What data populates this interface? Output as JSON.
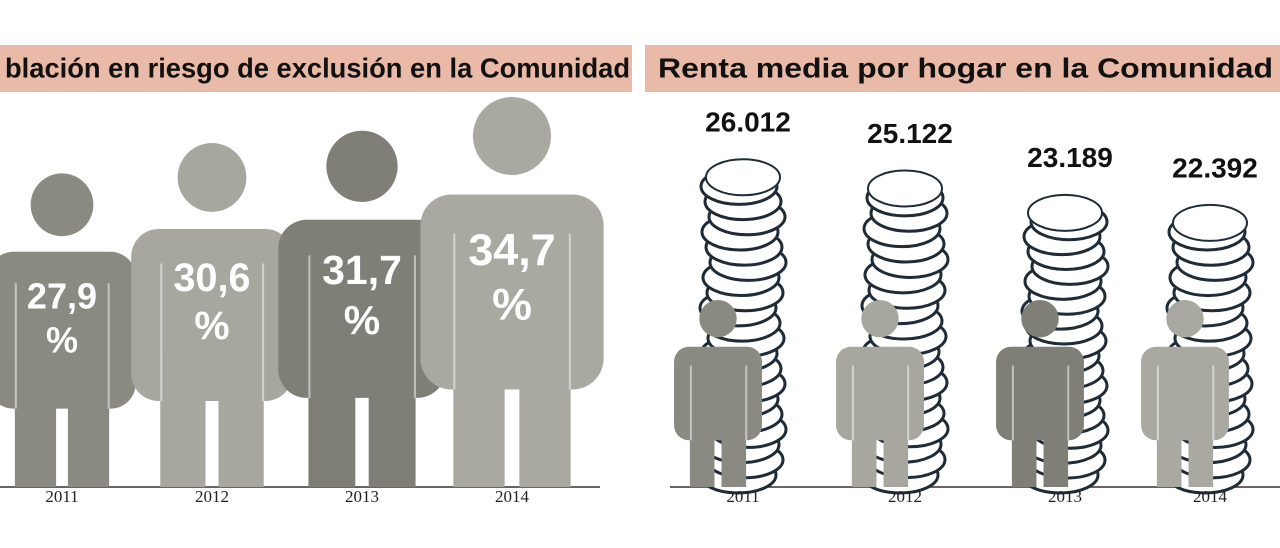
{
  "chart_data": [
    {
      "type": "person",
      "title": "blación en riesgo de exclusión en la Comunidad",
      "categories": [
        "2011",
        "2012",
        "2013",
        "2014"
      ],
      "values": [
        27.9,
        30.6,
        31.7,
        34.7
      ],
      "value_labels": [
        "27,9",
        "30,6",
        "31,7",
        "34,7"
      ],
      "unit": "%",
      "colors": [
        "#8a8a83",
        "#a7a7a0",
        "#7f7f78",
        "#a9a9a2"
      ]
    },
    {
      "type": "coins",
      "title": "Renta media por hogar en la Comunidad",
      "categories": [
        "2011",
        "2012",
        "2013",
        "2014"
      ],
      "values": [
        26012,
        25122,
        23189,
        22392
      ],
      "value_labels": [
        "26.012",
        "25.122",
        "23.189",
        "22.392"
      ],
      "colors": [
        "#8a8a83",
        "#a7a7a0",
        "#7f7f78",
        "#a9a9a2"
      ]
    }
  ]
}
